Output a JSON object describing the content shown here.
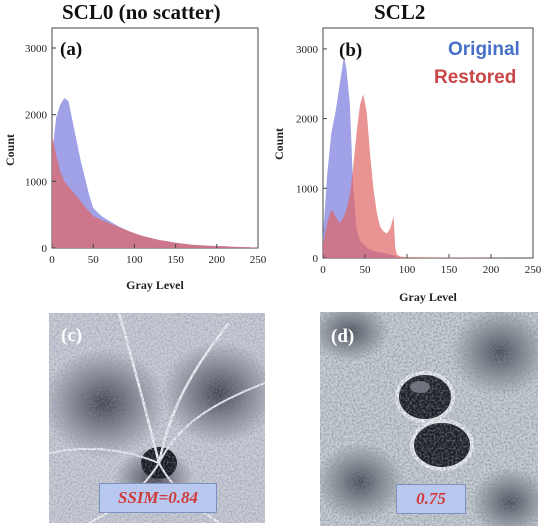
{
  "titles": {
    "left": "SCL0 (no scatter)",
    "right": "SCL2"
  },
  "legend": {
    "original": "Original",
    "restored": "Restored"
  },
  "colors": {
    "original": "#8f90e2",
    "restored": "#e06565",
    "overlap": "#b03868",
    "legend_original": "#4670c8",
    "legend_restored": "#c94646",
    "ssim_text": "#d23a3a"
  },
  "panels": {
    "a": "(a)",
    "b": "(b)",
    "c": "(c)",
    "d": "(d)"
  },
  "ssim": {
    "c": "SSIM=0.84",
    "d": "0.75"
  },
  "chart_data": [
    {
      "type": "area",
      "panel": "(a)",
      "title": "SCL0 (no scatter)",
      "xlabel": "Gray Level",
      "ylabel": "Count",
      "xlim": [
        0,
        250
      ],
      "ylim": [
        0,
        3300
      ],
      "xticks": [
        0,
        50,
        100,
        150,
        200,
        250
      ],
      "yticks": [
        0,
        1000,
        2000,
        3000
      ],
      "x": [
        0,
        5,
        10,
        15,
        20,
        25,
        30,
        35,
        40,
        45,
        50,
        60,
        70,
        80,
        90,
        100,
        110,
        120,
        130,
        140,
        150,
        160,
        170,
        180,
        190,
        200,
        210,
        220,
        230,
        240,
        250
      ],
      "series": [
        {
          "name": "Original",
          "values": [
            1400,
            1950,
            2150,
            2250,
            2200,
            1900,
            1600,
            1300,
            1050,
            800,
            600,
            480,
            400,
            330,
            270,
            220,
            180,
            150,
            120,
            100,
            80,
            65,
            50,
            40,
            35,
            30,
            25,
            20,
            15,
            10,
            0
          ]
        },
        {
          "name": "Restored",
          "values": [
            1700,
            1400,
            1150,
            1000,
            920,
            850,
            780,
            700,
            620,
            550,
            480,
            420,
            370,
            320,
            270,
            220,
            180,
            150,
            120,
            100,
            80,
            65,
            50,
            40,
            35,
            30,
            25,
            20,
            15,
            10,
            0
          ]
        }
      ]
    },
    {
      "type": "area",
      "panel": "(b)",
      "title": "SCL2",
      "xlabel": "Gray Level",
      "ylabel": "Count",
      "xlim": [
        0,
        250
      ],
      "ylim": [
        0,
        3300
      ],
      "xticks": [
        0,
        50,
        100,
        150,
        200,
        250
      ],
      "yticks": [
        0,
        1000,
        2000,
        3000
      ],
      "x": [
        0,
        5,
        10,
        15,
        20,
        25,
        28,
        32,
        36,
        40,
        44,
        48,
        52,
        56,
        60,
        64,
        68,
        72,
        76,
        80,
        84,
        86,
        88,
        92,
        100,
        250
      ],
      "series": [
        {
          "name": "Original",
          "values": [
            300,
            1200,
            1800,
            2100,
            2500,
            2900,
            2700,
            2200,
            1000,
            400,
            250,
            200,
            150,
            120,
            100,
            90,
            80,
            70,
            60,
            50,
            40,
            30,
            0,
            0,
            0,
            0
          ]
        },
        {
          "name": "Restored",
          "values": [
            200,
            500,
            700,
            600,
            500,
            600,
            700,
            900,
            1300,
            1800,
            2200,
            2350,
            2100,
            1500,
            1000,
            650,
            450,
            380,
            350,
            420,
            600,
            150,
            50,
            20,
            10,
            0
          ]
        }
      ]
    }
  ]
}
